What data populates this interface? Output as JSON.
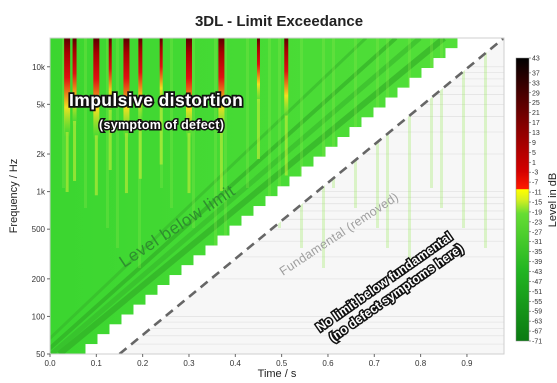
{
  "chart_data": {
    "type": "heatmap",
    "title": "3DL - Limit Exceedance",
    "xlabel": "Time / s",
    "ylabel": "Frequency / Hz",
    "colorbar_label": "Level in dB",
    "x_scale": "linear",
    "y_scale": "log",
    "xlim": [
      0,
      0.98
    ],
    "ylim": [
      50,
      17000
    ],
    "x_ticks": [
      0.0,
      0.1,
      0.2,
      0.3,
      0.4,
      0.5,
      0.6,
      0.7,
      0.8,
      0.9
    ],
    "x_tick_labels": [
      "0.0",
      "0.1",
      "0.2",
      "0.3",
      "0.4",
      "0.5",
      "0.6",
      "0.7",
      "0.8",
      "0.9"
    ],
    "y_ticks": [
      50,
      100,
      200,
      500,
      1000,
      2000,
      5000,
      10000
    ],
    "y_tick_labels": [
      "50",
      "100",
      "200",
      "500",
      "1k",
      "2k",
      "5k",
      "10k"
    ],
    "colorbar_range": [
      -71,
      43
    ],
    "colorbar_ticks": [
      43,
      37,
      33,
      29,
      25,
      21,
      17,
      13,
      9,
      5,
      1,
      -3,
      -7,
      -11,
      -15,
      -19,
      -23,
      -27,
      -31,
      -35,
      -39,
      -43,
      -47,
      -51,
      -55,
      -59,
      -63,
      -67,
      -71
    ],
    "colorbar_colors": {
      "top": "#000000",
      "mid_high": "#8b0000",
      "threshold": "#ff0000",
      "above_zero_yellow": "#ffff00",
      "green": "#00cc00",
      "low": "#006400"
    },
    "regions": {
      "fundamental_removed": "white staircase band where the fundamental was removed",
      "no_limit_below_fundamental": "light grey area below the fundamental"
    },
    "fundamental_sweep": [
      {
        "time": 0.15,
        "frequency": 50
      },
      {
        "time": 0.98,
        "frequency": 17000
      }
    ],
    "impulsive_distortion_events": [
      {
        "time": 0.037,
        "level_db": 40
      },
      {
        "time": 0.053,
        "level_db": 30
      },
      {
        "time": 0.1,
        "level_db": 43
      },
      {
        "time": 0.13,
        "level_db": 20
      },
      {
        "time": 0.165,
        "level_db": 41
      },
      {
        "time": 0.195,
        "level_db": 28
      },
      {
        "time": 0.24,
        "level_db": 15
      },
      {
        "time": 0.3,
        "level_db": 41
      },
      {
        "time": 0.37,
        "level_db": 39
      },
      {
        "time": 0.45,
        "level_db": 10
      },
      {
        "time": 0.51,
        "level_db": 25
      }
    ],
    "annotations": [
      "Impulsive distortion",
      "(symptom of defect)",
      "Level below limit",
      "Fundamental (removed)",
      "No limit below fundamental",
      "(no defect symptoms here)"
    ]
  }
}
